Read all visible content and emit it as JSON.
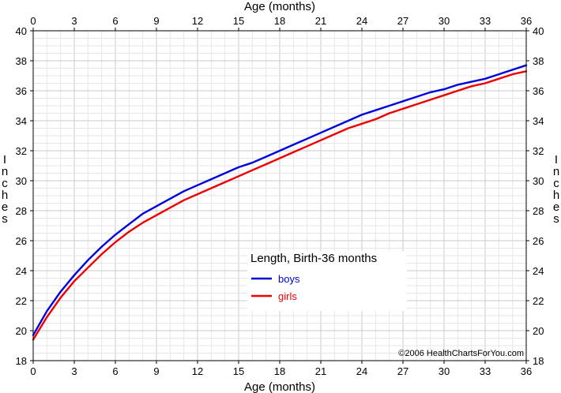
{
  "chart_data": {
    "type": "line",
    "title": "Length, Birth-36 months",
    "xlabel": "Age (months)",
    "ylabel": "Inches",
    "xlim": [
      0,
      36
    ],
    "ylim": [
      18,
      40
    ],
    "x_ticks": [
      0,
      3,
      6,
      9,
      12,
      15,
      18,
      21,
      24,
      27,
      30,
      33,
      36
    ],
    "y_ticks": [
      18,
      20,
      22,
      24,
      26,
      28,
      30,
      32,
      34,
      36,
      38,
      40
    ],
    "grid": true,
    "legend_position": "center-right",
    "copyright": "©2006 HealthChartsForYou.com",
    "series": [
      {
        "name": "boys",
        "color": "#0000dd",
        "x": [
          0,
          1,
          2,
          3,
          4,
          5,
          6,
          7,
          8,
          9,
          10,
          11,
          12,
          13,
          14,
          15,
          16,
          17,
          18,
          19,
          20,
          21,
          22,
          23,
          24,
          25,
          26,
          27,
          28,
          29,
          30,
          31,
          32,
          33,
          34,
          35,
          36
        ],
        "y": [
          19.7,
          21.3,
          22.6,
          23.7,
          24.7,
          25.6,
          26.4,
          27.1,
          27.8,
          28.3,
          28.8,
          29.3,
          29.7,
          30.1,
          30.5,
          30.9,
          31.2,
          31.6,
          32.0,
          32.4,
          32.8,
          33.2,
          33.6,
          34.0,
          34.4,
          34.7,
          35.0,
          35.3,
          35.6,
          35.9,
          36.1,
          36.4,
          36.6,
          36.8,
          37.1,
          37.4,
          37.7
        ]
      },
      {
        "name": "girls",
        "color": "#ee0000",
        "x": [
          0,
          1,
          2,
          3,
          4,
          5,
          6,
          7,
          8,
          9,
          10,
          11,
          12,
          13,
          14,
          15,
          16,
          17,
          18,
          19,
          20,
          21,
          22,
          23,
          24,
          25,
          26,
          27,
          28,
          29,
          30,
          31,
          32,
          33,
          34,
          35,
          36
        ],
        "y": [
          19.4,
          20.9,
          22.2,
          23.3,
          24.2,
          25.1,
          25.9,
          26.6,
          27.2,
          27.7,
          28.2,
          28.7,
          29.1,
          29.5,
          29.9,
          30.3,
          30.7,
          31.1,
          31.5,
          31.9,
          32.3,
          32.7,
          33.1,
          33.5,
          33.8,
          34.1,
          34.5,
          34.8,
          35.1,
          35.4,
          35.7,
          36.0,
          36.3,
          36.5,
          36.8,
          37.1,
          37.3
        ]
      }
    ]
  }
}
